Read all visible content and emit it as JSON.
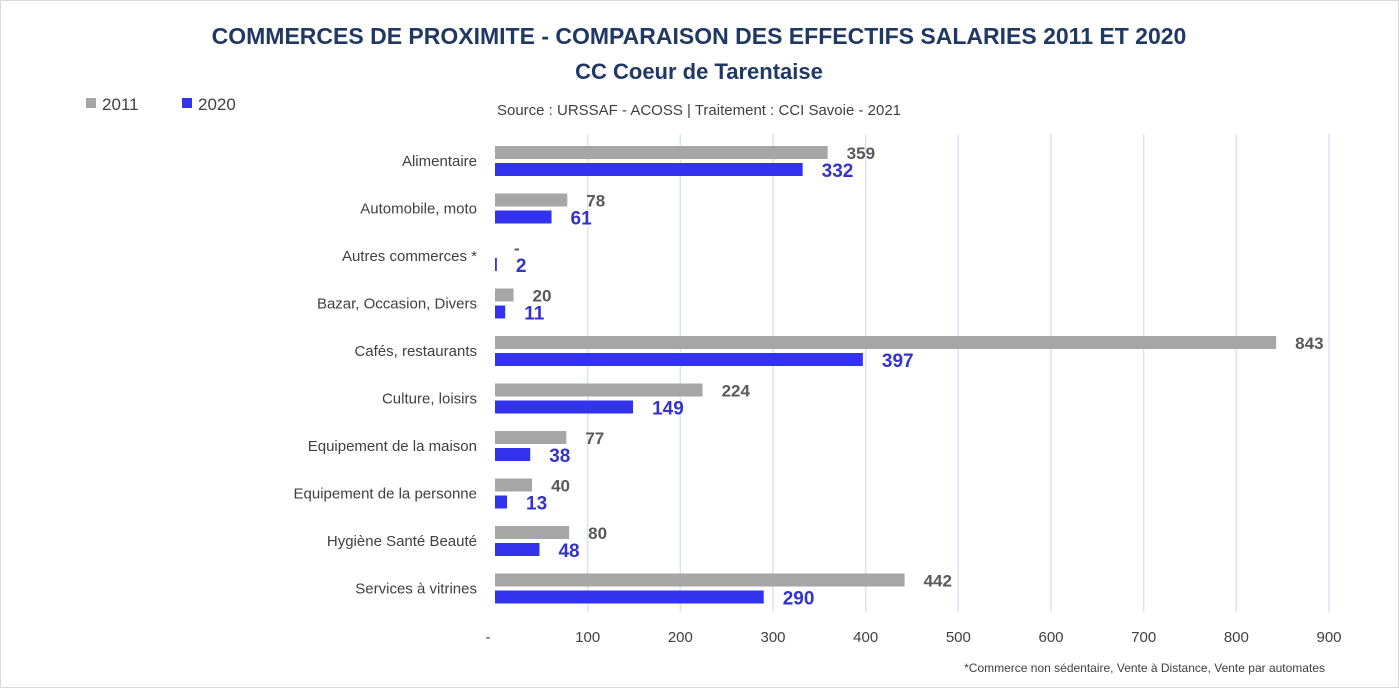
{
  "chart_data": {
    "type": "bar",
    "orientation": "horizontal",
    "title": "COMMERCES DE PROXIMITE - COMPARAISON DES EFFECTIFS SALARIES 2011 ET 2020",
    "subtitle": "CC Coeur de Tarentaise",
    "source": "Source  : URSSAF - ACOSS  |  Traitement : CCI Savoie - 2021",
    "footnote": "*Commerce non sédentaire, Vente à Distance, Vente par automates",
    "categories": [
      "Alimentaire",
      "Automobile, moto",
      "Autres commerces *",
      "Bazar, Occasion, Divers",
      "Cafés, restaurants",
      "Culture, loisirs",
      "Equipement de la maison",
      "Equipement de la personne",
      "Hygiène Santé Beauté",
      "Services à vitrines"
    ],
    "series": [
      {
        "name": "2011",
        "color": "#a6a6a6",
        "values": [
          359,
          78,
          0,
          20,
          843,
          224,
          77,
          40,
          80,
          442
        ],
        "labels": [
          "359",
          "78",
          "-",
          "20",
          "843",
          "224",
          "77",
          "40",
          "80",
          "442"
        ]
      },
      {
        "name": "2020",
        "color": "#3333ee",
        "values": [
          332,
          61,
          2,
          11,
          397,
          149,
          38,
          13,
          48,
          290
        ],
        "labels": [
          "332",
          "61",
          "2",
          "11",
          "397",
          "149",
          "38",
          "13",
          "48",
          "290"
        ]
      }
    ],
    "xlim": [
      0,
      900
    ],
    "xticks": [
      0,
      100,
      200,
      300,
      400,
      500,
      600,
      700,
      800,
      900
    ],
    "xtick_labels": [
      "-",
      "100",
      "200",
      "300",
      "400",
      "500",
      "600",
      "700",
      "800",
      "900"
    ],
    "grid": true,
    "legend_position": "top-left",
    "gridline_color": "#dae3f3"
  }
}
